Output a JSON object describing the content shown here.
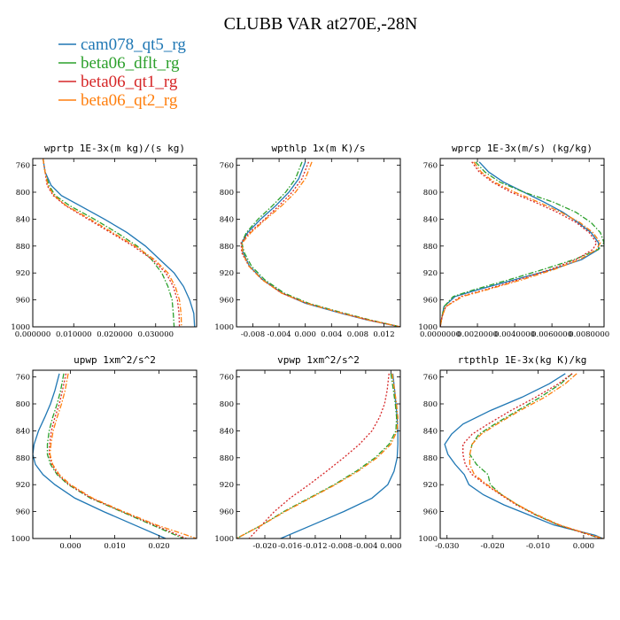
{
  "title": "CLUBB VAR at270E,-28N",
  "colors": {
    "cam078_qt5_rg": "#1f77b4",
    "beta06_dflt_rg": "#2ca02c",
    "beta06_qt1_rg": "#d62728",
    "beta06_qt2_rg": "#ff7f0e"
  },
  "legend": [
    {
      "name": "cam078_qt5_rg",
      "color": "#1f77b4",
      "dash": "solid"
    },
    {
      "name": "beta06_dflt_rg",
      "color": "#2ca02c",
      "dash": "dashdot"
    },
    {
      "name": "beta06_qt1_rg",
      "color": "#d62728",
      "dash": "dotted"
    },
    {
      "name": "beta06_qt2_rg",
      "color": "#ff7f0e",
      "dash": "dashdot"
    }
  ],
  "chart_data": [
    {
      "type": "line",
      "title": "wprtp  1E-3x(m kg)/(s kg)",
      "xlim": [
        0.0,
        0.04
      ],
      "xticks": [
        0.0,
        0.01,
        0.02,
        0.03
      ],
      "xtick_labels": [
        "0.000000",
        "0.010000",
        "0.020000",
        "0.030000"
      ],
      "ylim": [
        1000,
        750
      ],
      "yticks": [
        760,
        800,
        840,
        880,
        920,
        960,
        1000
      ],
      "ytick_labels": [
        "760",
        "800",
        "840",
        "880",
        "920",
        "960",
        "1000"
      ],
      "y": [
        750,
        770,
        790,
        805,
        820,
        840,
        860,
        880,
        900,
        920,
        940,
        960,
        980,
        1000
      ],
      "series": [
        {
          "name": "cam078_qt5_rg",
          "x": [
            0.0025,
            0.003,
            0.0045,
            0.007,
            0.0115,
            0.0175,
            0.023,
            0.0275,
            0.031,
            0.0345,
            0.0368,
            0.0383,
            0.0393,
            0.0395
          ]
        },
        {
          "name": "beta06_dflt_rg",
          "x": [
            0.0025,
            0.003,
            0.004,
            0.0055,
            0.009,
            0.015,
            0.0205,
            0.0255,
            0.029,
            0.0315,
            0.033,
            0.034,
            0.0343,
            0.0345
          ]
        },
        {
          "name": "beta06_qt1_rg",
          "x": [
            0.0025,
            0.003,
            0.0035,
            0.005,
            0.008,
            0.0135,
            0.019,
            0.0245,
            0.0292,
            0.0325,
            0.0343,
            0.0353,
            0.0357,
            0.0358
          ]
        },
        {
          "name": "beta06_qt2_rg",
          "x": [
            0.0025,
            0.003,
            0.0037,
            0.0052,
            0.0082,
            0.014,
            0.0195,
            0.025,
            0.0297,
            0.033,
            0.0348,
            0.0358,
            0.0362,
            0.0363
          ]
        }
      ]
    },
    {
      "type": "line",
      "title": "wpthlp  1x(m K)/s",
      "xlim": [
        -0.0105,
        0.0145
      ],
      "xticks": [
        -0.008,
        -0.004,
        0.0,
        0.004,
        0.008,
        0.012
      ],
      "xtick_labels": [
        "-0.008",
        "-0.004",
        "0.000",
        "0.004",
        "0.008",
        "0.012"
      ],
      "ylim": [
        1000,
        750
      ],
      "yticks": [
        760,
        800,
        840,
        880,
        920,
        960,
        1000
      ],
      "ytick_labels": [
        "760",
        "800",
        "840",
        "880",
        "920",
        "960",
        "1000"
      ],
      "y": [
        755,
        780,
        800,
        820,
        840,
        860,
        875,
        890,
        910,
        930,
        950,
        965,
        980,
        990,
        1000
      ],
      "series": [
        {
          "name": "cam078_qt5_rg",
          "x": [
            0.0,
            -0.001,
            -0.0025,
            -0.0045,
            -0.0068,
            -0.0088,
            -0.0097,
            -0.0095,
            -0.0085,
            -0.0065,
            -0.0035,
            0.0,
            0.0055,
            0.0095,
            0.0145
          ]
        },
        {
          "name": "beta06_dflt_rg",
          "x": [
            -0.0005,
            -0.0015,
            -0.003,
            -0.005,
            -0.0072,
            -0.009,
            -0.0097,
            -0.0093,
            -0.0082,
            -0.0062,
            -0.0032,
            0.0005,
            0.006,
            0.01,
            0.0145
          ]
        },
        {
          "name": "beta06_qt1_rg",
          "x": [
            0.0005,
            -0.0005,
            -0.002,
            -0.004,
            -0.0062,
            -0.0085,
            -0.0098,
            -0.0097,
            -0.0086,
            -0.0066,
            -0.0036,
            0.0002,
            0.0057,
            0.0097,
            0.0145
          ]
        },
        {
          "name": "beta06_qt2_rg",
          "x": [
            0.001,
            0.0,
            -0.0015,
            -0.0036,
            -0.006,
            -0.0083,
            -0.0096,
            -0.0096,
            -0.0086,
            -0.0066,
            -0.0036,
            0.0002,
            0.0057,
            0.0097,
            0.0145
          ]
        }
      ]
    },
    {
      "type": "line",
      "title": "wprcp  1E-3x(m/s) (kg/kg)",
      "xlim": [
        0.0,
        0.0088
      ],
      "xticks": [
        0.0,
        0.002,
        0.004,
        0.006,
        0.008
      ],
      "xtick_labels": [
        "0.0000000",
        "0.0020000",
        "0.0040000",
        "0.0060000",
        "0.0080000"
      ],
      "ylim": [
        1000,
        750
      ],
      "yticks": [
        760,
        800,
        840,
        880,
        920,
        960,
        1000
      ],
      "ytick_labels": [
        "760",
        "800",
        "840",
        "880",
        "920",
        "960",
        "1000"
      ],
      "y": [
        755,
        770,
        785,
        800,
        815,
        830,
        845,
        860,
        875,
        885,
        900,
        915,
        930,
        945,
        955,
        970,
        985,
        1000
      ],
      "series": [
        {
          "name": "cam078_qt5_rg",
          "x": [
            0.0021,
            0.0026,
            0.0034,
            0.0045,
            0.0056,
            0.0066,
            0.0074,
            0.0081,
            0.0085,
            0.0085,
            0.0076,
            0.006,
            0.004,
            0.002,
            0.0008,
            0.0002,
            0.0001,
            0.0
          ]
        },
        {
          "name": "beta06_dflt_rg",
          "x": [
            0.0019,
            0.0024,
            0.0032,
            0.0045,
            0.0061,
            0.0073,
            0.0081,
            0.0086,
            0.0088,
            0.0085,
            0.0072,
            0.0055,
            0.0037,
            0.0018,
            0.0007,
            0.0002,
            0.0001,
            0.0
          ]
        },
        {
          "name": "beta06_qt1_rg",
          "x": [
            0.0017,
            0.0021,
            0.0028,
            0.0038,
            0.0051,
            0.0063,
            0.0073,
            0.008,
            0.0084,
            0.0082,
            0.0073,
            0.0059,
            0.0042,
            0.0024,
            0.0011,
            0.0003,
            0.0001,
            0.0
          ]
        },
        {
          "name": "beta06_qt2_rg",
          "x": [
            0.0018,
            0.0022,
            0.0029,
            0.004,
            0.0053,
            0.0065,
            0.0075,
            0.0082,
            0.0086,
            0.0084,
            0.0075,
            0.0061,
            0.0044,
            0.0025,
            0.0012,
            0.0003,
            0.0001,
            0.0
          ]
        }
      ]
    },
    {
      "type": "line",
      "title": "upwp  1xm^2/s^2",
      "xlim": [
        -0.0085,
        0.0285
      ],
      "xticks": [
        0.0,
        0.01,
        0.02
      ],
      "xtick_labels": [
        "0.000",
        "0.010",
        "0.020"
      ],
      "ylim": [
        1000,
        750
      ],
      "yticks": [
        760,
        800,
        840,
        880,
        920,
        960,
        1000
      ],
      "ytick_labels": [
        "760",
        "800",
        "840",
        "880",
        "920",
        "960",
        "1000"
      ],
      "y": [
        755,
        780,
        800,
        820,
        840,
        860,
        875,
        890,
        905,
        920,
        940,
        960,
        980,
        1000
      ],
      "series": [
        {
          "name": "cam078_qt5_rg",
          "x": [
            -0.0025,
            -0.0035,
            -0.0045,
            -0.0058,
            -0.0072,
            -0.0082,
            -0.0085,
            -0.0079,
            -0.0062,
            -0.0035,
            0.001,
            0.0075,
            0.0145,
            0.0215
          ]
        },
        {
          "name": "beta06_dflt_rg",
          "x": [
            -0.0015,
            -0.0022,
            -0.003,
            -0.004,
            -0.0048,
            -0.0052,
            -0.0052,
            -0.0045,
            -0.003,
            -0.0005,
            0.0045,
            0.0115,
            0.0185,
            0.0255
          ]
        },
        {
          "name": "beta06_qt1_rg",
          "x": [
            -0.001,
            -0.0018,
            -0.0025,
            -0.0035,
            -0.0043,
            -0.0047,
            -0.0048,
            -0.0042,
            -0.0028,
            -0.0003,
            0.0047,
            0.0117,
            0.019,
            0.0262
          ]
        },
        {
          "name": "beta06_qt2_rg",
          "x": [
            -0.0005,
            -0.0012,
            -0.002,
            -0.003,
            -0.0039,
            -0.0044,
            -0.0046,
            -0.004,
            -0.0025,
            0.0,
            0.005,
            0.012,
            0.0195,
            0.0285
          ]
        }
      ]
    },
    {
      "type": "line",
      "title": "vpwp  1xm^2/s^2",
      "xlim": [
        -0.0245,
        0.0015
      ],
      "xticks": [
        -0.02,
        -0.016,
        -0.012,
        -0.008,
        -0.004,
        0.0
      ],
      "xtick_labels": [
        "-0.020",
        "-0.016",
        "-0.012",
        "-0.008",
        "-0.004",
        "0.000"
      ],
      "ylim": [
        1000,
        750
      ],
      "yticks": [
        760,
        800,
        840,
        880,
        920,
        960,
        1000
      ],
      "ytick_labels": [
        "760",
        "800",
        "840",
        "880",
        "920",
        "960",
        "1000"
      ],
      "y": [
        755,
        780,
        800,
        820,
        840,
        860,
        880,
        900,
        920,
        940,
        960,
        980,
        1000
      ],
      "series": [
        {
          "name": "cam078_qt5_rg",
          "x": [
            0.0003,
            0.0006,
            0.0008,
            0.001,
            0.0011,
            0.0011,
            0.001,
            0.0005,
            -0.0005,
            -0.003,
            -0.0075,
            -0.0125,
            -0.0175
          ]
        },
        {
          "name": "beta06_dflt_rg",
          "x": [
            0.0,
            0.0004,
            0.0007,
            0.0009,
            0.0008,
            -0.0003,
            -0.0025,
            -0.0055,
            -0.009,
            -0.013,
            -0.017,
            -0.0205,
            -0.0245
          ]
        },
        {
          "name": "beta06_qt1_rg",
          "x": [
            -0.0003,
            -0.0006,
            -0.001,
            -0.0018,
            -0.003,
            -0.005,
            -0.0075,
            -0.0102,
            -0.013,
            -0.016,
            -0.0185,
            -0.0205,
            -0.0225
          ]
        },
        {
          "name": "beta06_qt2_rg",
          "x": [
            0.0002,
            0.0006,
            0.0009,
            0.0011,
            0.001,
            0.0,
            -0.0022,
            -0.0052,
            -0.0088,
            -0.0128,
            -0.0168,
            -0.0205,
            -0.0245
          ]
        }
      ]
    },
    {
      "type": "line",
      "title": "rtpthlp  1E-3x(kg K)/kg",
      "xlim": [
        -0.0315,
        0.0045
      ],
      "xticks": [
        -0.03,
        -0.02,
        -0.01,
        0.0
      ],
      "xtick_labels": [
        "-0.030",
        "-0.020",
        "-0.010",
        "0.000"
      ],
      "ylim": [
        1000,
        750
      ],
      "yticks": [
        760,
        800,
        840,
        880,
        920,
        960,
        1000
      ],
      "ytick_labels": [
        "760",
        "800",
        "840",
        "880",
        "920",
        "960",
        "1000"
      ],
      "y": [
        755,
        770,
        790,
        810,
        830,
        845,
        860,
        875,
        890,
        905,
        920,
        935,
        950,
        965,
        980,
        995,
        1000
      ],
      "series": [
        {
          "name": "cam078_qt5_rg",
          "x": [
            -0.004,
            -0.0075,
            -0.0135,
            -0.0205,
            -0.0265,
            -0.029,
            -0.0305,
            -0.0298,
            -0.0282,
            -0.0262,
            -0.0252,
            -0.022,
            -0.0175,
            -0.012,
            -0.0065,
            0.0025,
            0.0042
          ]
        },
        {
          "name": "beta06_dflt_rg",
          "x": [
            -0.0025,
            -0.005,
            -0.0095,
            -0.0145,
            -0.0195,
            -0.023,
            -0.0245,
            -0.025,
            -0.0235,
            -0.021,
            -0.0205,
            -0.018,
            -0.0145,
            -0.0105,
            -0.0055,
            0.0015,
            0.0038
          ]
        },
        {
          "name": "beta06_qt1_rg",
          "x": [
            -0.0025,
            -0.0055,
            -0.0105,
            -0.016,
            -0.021,
            -0.0245,
            -0.0265,
            -0.0265,
            -0.026,
            -0.0245,
            -0.0215,
            -0.0182,
            -0.0148,
            -0.0105,
            -0.0055,
            0.0015,
            0.004
          ]
        },
        {
          "name": "beta06_qt2_rg",
          "x": [
            -0.0015,
            -0.004,
            -0.0085,
            -0.014,
            -0.019,
            -0.0225,
            -0.0245,
            -0.025,
            -0.025,
            -0.024,
            -0.0212,
            -0.018,
            -0.0145,
            -0.0102,
            -0.0052,
            0.0018,
            0.0043
          ]
        }
      ]
    }
  ]
}
